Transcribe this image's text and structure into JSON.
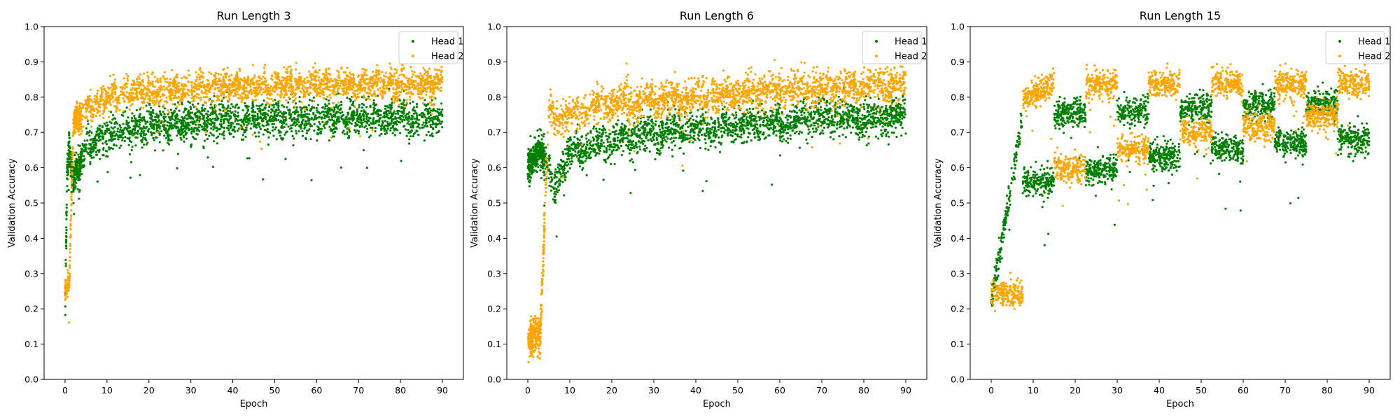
{
  "figure": {
    "background": "#ffffff"
  },
  "chart_data": [
    {
      "type": "scatter",
      "title": "Run Length 3",
      "xlabel": "Epoch",
      "ylabel": "Validation Accuracy",
      "xlim": [
        -5,
        95
      ],
      "ylim": [
        0.0,
        1.0
      ],
      "xticks": [
        "0",
        "10",
        "20",
        "30",
        "40",
        "50",
        "60",
        "70",
        "80",
        "90"
      ],
      "yticks": [
        "0.0",
        "0.1",
        "0.2",
        "0.3",
        "0.4",
        "0.5",
        "0.6",
        "0.7",
        "0.8",
        "0.9",
        "1.0"
      ],
      "grid": false,
      "legend": "top-right",
      "run_length": 3,
      "series": [
        {
          "name": "Head 1",
          "color": "#008000",
          "anchors": [
            [
              0,
              0.18
            ],
            [
              0.5,
              0.6
            ],
            [
              1,
              0.65
            ],
            [
              2,
              0.55
            ],
            [
              3,
              0.6
            ],
            [
              5,
              0.66
            ],
            [
              10,
              0.69
            ],
            [
              20,
              0.72
            ],
            [
              40,
              0.74
            ],
            [
              90,
              0.74
            ]
          ],
          "spread": 0.025
        },
        {
          "name": "Head 2",
          "color": "#ffa500",
          "anchors": [
            [
              0,
              0.27
            ],
            [
              1,
              0.27
            ],
            [
              2,
              0.72
            ],
            [
              5,
              0.77
            ],
            [
              10,
              0.8
            ],
            [
              20,
              0.82
            ],
            [
              50,
              0.835
            ],
            [
              90,
              0.835
            ]
          ],
          "spread": 0.02
        }
      ]
    },
    {
      "type": "scatter",
      "title": "Run Length 6",
      "xlabel": "Epoch",
      "ylabel": "Validation Accuracy",
      "xlim": [
        -5,
        95
      ],
      "ylim": [
        0.0,
        1.0
      ],
      "xticks": [
        "0",
        "10",
        "20",
        "30",
        "40",
        "50",
        "60",
        "70",
        "80",
        "90"
      ],
      "yticks": [
        "0.0",
        "0.1",
        "0.2",
        "0.3",
        "0.4",
        "0.5",
        "0.6",
        "0.7",
        "0.8",
        "0.9",
        "1.0"
      ],
      "grid": false,
      "legend": "top-right",
      "run_length": 6,
      "series": [
        {
          "name": "Head 1",
          "color": "#008000",
          "anchors": [
            [
              0,
              0.62
            ],
            [
              3,
              0.65
            ],
            [
              6,
              0.55
            ],
            [
              10,
              0.64
            ],
            [
              20,
              0.68
            ],
            [
              30,
              0.7
            ],
            [
              50,
              0.72
            ],
            [
              70,
              0.74
            ],
            [
              90,
              0.745
            ]
          ],
          "spread": 0.025
        },
        {
          "name": "Head 2",
          "color": "#ffa500",
          "anchors": [
            [
              0,
              0.13
            ],
            [
              3,
              0.13
            ],
            [
              5,
              0.75
            ],
            [
              10,
              0.75
            ],
            [
              20,
              0.79
            ],
            [
              40,
              0.8
            ],
            [
              60,
              0.82
            ],
            [
              90,
              0.835
            ]
          ],
          "spread": 0.025
        }
      ]
    },
    {
      "type": "scatter",
      "title": "Run Length 15",
      "xlabel": "Epoch",
      "ylabel": "Validation Accuracy",
      "xlim": [
        -5,
        95
      ],
      "ylim": [
        0.0,
        1.0
      ],
      "xticks": [
        "0",
        "10",
        "20",
        "30",
        "40",
        "50",
        "60",
        "70",
        "80",
        "90"
      ],
      "yticks": [
        "0.0",
        "0.1",
        "0.2",
        "0.3",
        "0.4",
        "0.5",
        "0.6",
        "0.7",
        "0.8",
        "0.9",
        "1.0"
      ],
      "grid": false,
      "legend": "top-right",
      "run_length": 15,
      "series": [
        {
          "name": "Head 1",
          "color": "#008000",
          "segments": [
            {
              "x": [
                0,
                7.5
              ],
              "y": [
                0.22,
                0.74
              ]
            },
            {
              "x": [
                7.5,
                15
              ],
              "y": [
                0.56,
                0.56
              ]
            },
            {
              "x": [
                15,
                22.5
              ],
              "y": [
                0.75,
                0.76
              ]
            },
            {
              "x": [
                22.5,
                30
              ],
              "y": [
                0.59,
                0.6
              ]
            },
            {
              "x": [
                30,
                37.5
              ],
              "y": [
                0.76,
                0.76
              ]
            },
            {
              "x": [
                37.5,
                45
              ],
              "y": [
                0.63,
                0.63
              ]
            },
            {
              "x": [
                45,
                52.5
              ],
              "y": [
                0.77,
                0.77
              ]
            },
            {
              "x": [
                52.5,
                60
              ],
              "y": [
                0.65,
                0.65
              ]
            },
            {
              "x": [
                60,
                67.5
              ],
              "y": [
                0.78,
                0.78
              ]
            },
            {
              "x": [
                67.5,
                75
              ],
              "y": [
                0.67,
                0.67
              ]
            },
            {
              "x": [
                75,
                82.5
              ],
              "y": [
                0.78,
                0.78
              ]
            },
            {
              "x": [
                82.5,
                90
              ],
              "y": [
                0.68,
                0.68
              ]
            }
          ],
          "spread": 0.02
        },
        {
          "name": "Head 2",
          "color": "#ffa500",
          "segments": [
            {
              "x": [
                0,
                7.5
              ],
              "y": [
                0.25,
                0.24
              ]
            },
            {
              "x": [
                7.5,
                15
              ],
              "y": [
                0.79,
                0.84
              ]
            },
            {
              "x": [
                15,
                22.5
              ],
              "y": [
                0.6,
                0.6
              ]
            },
            {
              "x": [
                22.5,
                30
              ],
              "y": [
                0.83,
                0.84
              ]
            },
            {
              "x": [
                30,
                37.5
              ],
              "y": [
                0.65,
                0.65
              ]
            },
            {
              "x": [
                37.5,
                45
              ],
              "y": [
                0.83,
                0.84
              ]
            },
            {
              "x": [
                45,
                52.5
              ],
              "y": [
                0.7,
                0.7
              ]
            },
            {
              "x": [
                52.5,
                60
              ],
              "y": [
                0.84,
                0.84
              ]
            },
            {
              "x": [
                60,
                67.5
              ],
              "y": [
                0.72,
                0.72
              ]
            },
            {
              "x": [
                67.5,
                75
              ],
              "y": [
                0.84,
                0.84
              ]
            },
            {
              "x": [
                75,
                82.5
              ],
              "y": [
                0.75,
                0.75
              ]
            },
            {
              "x": [
                82.5,
                90
              ],
              "y": [
                0.84,
                0.84
              ]
            }
          ],
          "spread": 0.02
        }
      ]
    }
  ]
}
